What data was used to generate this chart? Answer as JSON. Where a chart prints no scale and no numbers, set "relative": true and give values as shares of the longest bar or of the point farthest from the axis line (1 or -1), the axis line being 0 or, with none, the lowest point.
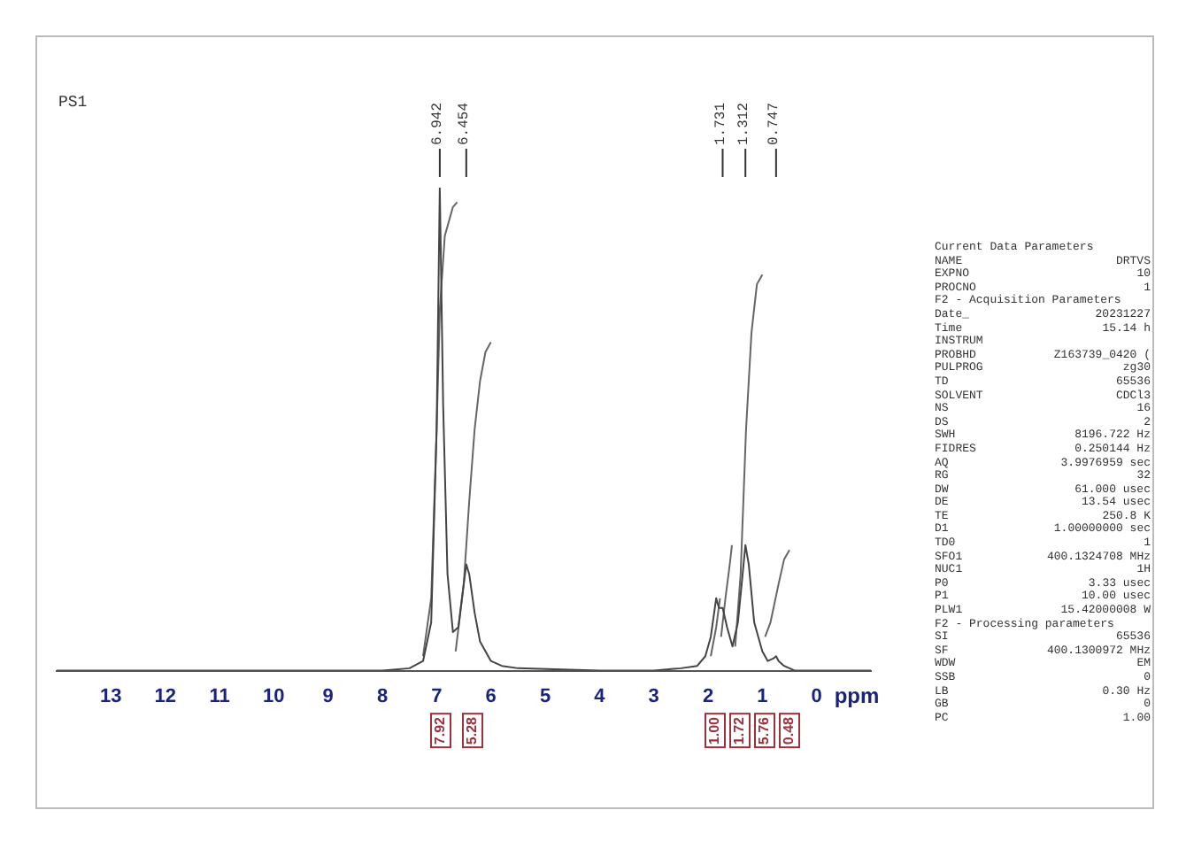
{
  "chart_data": {
    "type": "line",
    "title": "PS1",
    "xlabel": "ppm",
    "relative": true,
    "xlim": [
      14,
      -1
    ],
    "xticks": [
      13,
      12,
      11,
      10,
      9,
      8,
      7,
      6,
      5,
      4,
      3,
      2,
      1,
      0
    ],
    "grid": false,
    "legend": false,
    "marker": "none",
    "line_style": "solid",
    "series": [
      {
        "color": "#444444",
        "x": [
          14,
          8,
          7.5,
          7.25,
          7.1,
          7.0,
          6.942,
          6.88,
          6.8,
          6.7,
          6.6,
          6.5,
          6.454,
          6.4,
          6.3,
          6.2,
          6.0,
          5.8,
          5.5,
          4,
          3,
          2.5,
          2.2,
          2.05,
          1.95,
          1.85,
          1.8,
          1.731,
          1.65,
          1.55,
          1.45,
          1.38,
          1.312,
          1.25,
          1.15,
          1.0,
          0.9,
          0.8,
          0.747,
          0.7,
          0.6,
          0.4,
          0,
          -1
        ],
        "values": [
          0,
          0,
          0.005,
          0.02,
          0.1,
          0.5,
          1.0,
          0.55,
          0.2,
          0.08,
          0.09,
          0.18,
          0.22,
          0.2,
          0.12,
          0.06,
          0.02,
          0.01,
          0.005,
          0,
          0,
          0.005,
          0.01,
          0.03,
          0.07,
          0.15,
          0.13,
          0.13,
          0.09,
          0.05,
          0.1,
          0.18,
          0.26,
          0.22,
          0.1,
          0.04,
          0.02,
          0.025,
          0.03,
          0.02,
          0.01,
          0,
          0,
          0
        ]
      },
      {
        "color": "#666666",
        "x": [
          7.25,
          7.1,
          7.0,
          6.94,
          6.85,
          6.7,
          6.62
        ],
        "values": [
          0.03,
          0.15,
          0.5,
          0.75,
          0.9,
          0.96,
          0.97
        ]
      },
      {
        "color": "#666666",
        "x": [
          6.65,
          6.5,
          6.4,
          6.3,
          6.2,
          6.1,
          6.0
        ],
        "values": [
          0.04,
          0.18,
          0.35,
          0.5,
          0.6,
          0.66,
          0.68
        ]
      },
      {
        "color": "#666666",
        "x": [
          1.95,
          1.85,
          1.78
        ],
        "values": [
          0.03,
          0.09,
          0.15
        ]
      },
      {
        "color": "#666666",
        "x": [
          1.76,
          1.68,
          1.6,
          1.56
        ],
        "values": [
          0.07,
          0.15,
          0.22,
          0.26
        ]
      },
      {
        "color": "#666666",
        "x": [
          1.5,
          1.4,
          1.3,
          1.2,
          1.1,
          1.0
        ],
        "values": [
          0.05,
          0.2,
          0.5,
          0.7,
          0.8,
          0.82
        ]
      },
      {
        "color": "#666666",
        "x": [
          0.95,
          0.85,
          0.7,
          0.6,
          0.5
        ],
        "values": [
          0.07,
          0.1,
          0.18,
          0.23,
          0.25
        ]
      }
    ],
    "annotations": [
      {
        "text": "6.942",
        "x": 6.942
      },
      {
        "text": "6.454",
        "x": 6.454
      },
      {
        "text": "1.731",
        "x": 1.731
      },
      {
        "text": "1.312",
        "x": 1.312
      },
      {
        "text": "0.747",
        "x": 0.747
      },
      "7.92",
      "5.28",
      "1.00",
      "1.72",
      "5.76",
      "0.48",
      "Current Data Parameters",
      "NAME  DRTVS",
      "EXPNO  10",
      "PROCNO  1",
      "F2 - Acquisition Parameters",
      "Date_  20231227",
      "Time  15.14 h",
      "INSTRUM",
      "PROBHD  Z163739_0420 (",
      "PULPROG  zg30",
      "TD  65536",
      "SOLVENT  CDCl3",
      "NS  16",
      "DS  2",
      "SWH  8196.722 Hz",
      "FIDRES  0.250144 Hz",
      "AQ  3.9976959 sec",
      "RG  32",
      "DW  61.000 usec",
      "DE  13.54 usec",
      "TE  250.8 K",
      "D1  1.00000000 sec",
      "TD0  1",
      "SFO1  400.1324708 MHz",
      "NUC1  1H",
      "P0  3.33 usec",
      "P1  10.00 usec",
      "PLW1  15.42000008 W",
      "F2 - Processing parameters",
      "SI  65536",
      "SF  400.1300972 MHz",
      "WDW  EM",
      "SSB  0",
      "LB  0.30 Hz",
      "GB  0",
      "PC  1.00"
    ]
  }
}
